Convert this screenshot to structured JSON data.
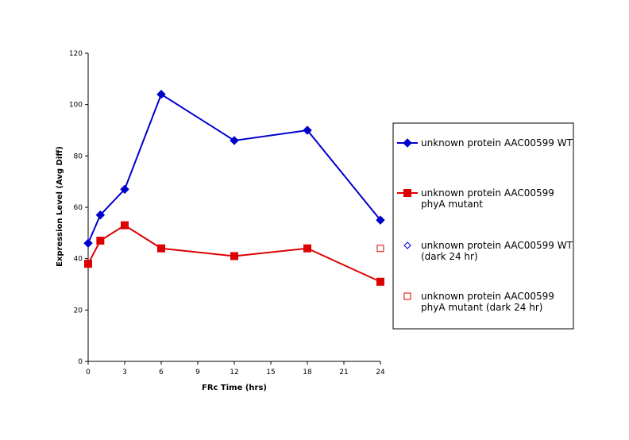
{
  "chart_data": {
    "type": "line",
    "title": "",
    "xlabel": "FRc Time (hrs)",
    "ylabel": "Expression Level (Avg Diff)",
    "xlim": [
      0,
      24
    ],
    "ylim": [
      0,
      120
    ],
    "xticks": [
      0,
      3,
      6,
      9,
      12,
      15,
      18,
      21,
      24
    ],
    "yticks": [
      0,
      20,
      40,
      60,
      80,
      100,
      120
    ],
    "grid": false,
    "legend_position": "right",
    "series": [
      {
        "name": "unknown protein AAC00599 WT",
        "legend_lines": [
          "unknown protein AAC00599 WT"
        ],
        "color": "#0000cc",
        "marker": "diamond-filled",
        "connected": true,
        "x": [
          0,
          1,
          3,
          6,
          12,
          18,
          24
        ],
        "y": [
          46,
          57,
          67,
          104,
          86,
          90,
          55
        ]
      },
      {
        "name": "unknown protein AAC00599 phyA mutant",
        "legend_lines": [
          "unknown protein AAC00599",
          "phyA mutant"
        ],
        "color": "#dd0000",
        "marker": "square-filled",
        "connected": true,
        "x": [
          0,
          1,
          3,
          6,
          12,
          18,
          24
        ],
        "y": [
          38,
          47,
          53,
          44,
          41,
          44,
          31
        ]
      },
      {
        "name": "unknown protein AAC00599 WT (dark 24 hr)",
        "legend_lines": [
          "unknown protein AAC00599 WT",
          "(dark 24 hr)"
        ],
        "color": "#0000cc",
        "marker": "diamond-open",
        "connected": false,
        "x": [],
        "y": []
      },
      {
        "name": "unknown protein AAC00599 phyA mutant (dark 24 hr)",
        "legend_lines": [
          "unknown protein AAC00599",
          "phyA mutant (dark 24 hr)"
        ],
        "color": "#dd0000",
        "marker": "square-open",
        "connected": false,
        "x": [
          24
        ],
        "y": [
          44
        ]
      }
    ]
  }
}
